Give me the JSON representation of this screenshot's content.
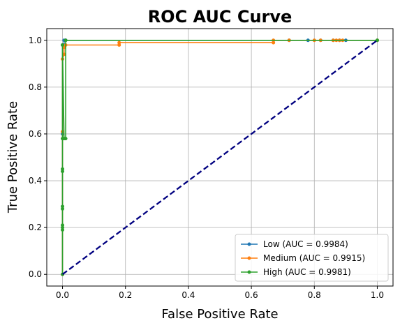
{
  "chart_data": {
    "type": "line",
    "title": "ROC AUC Curve",
    "xlabel": "False Positive Rate",
    "ylabel": "True Positive Rate",
    "xlim": [
      -0.05,
      1.05
    ],
    "ylim": [
      -0.05,
      1.05
    ],
    "xticks": [
      "0.0",
      "0.2",
      "0.4",
      "0.6",
      "0.8",
      "1.0"
    ],
    "yticks": [
      "0.0",
      "0.2",
      "0.4",
      "0.6",
      "0.8",
      "1.0"
    ],
    "grid": true,
    "legend_position": "lower right",
    "series": [
      {
        "name": "Low (AUC = 0.9984)",
        "color": "#1f77b4",
        "x": [
          0,
          0,
          0,
          0.005,
          0.005,
          0.01,
          0.01,
          0.72,
          0.78,
          0.82,
          0.86,
          0.88,
          0.9,
          1.0
        ],
        "y": [
          0,
          0.6,
          0.98,
          0.98,
          1.0,
          1.0,
          1.0,
          1.0,
          1.0,
          1.0,
          1.0,
          1.0,
          1.0,
          1.0
        ]
      },
      {
        "name": "Medium (AUC = 0.9915)",
        "color": "#ff7f0e",
        "x": [
          0,
          0,
          0,
          0.005,
          0.005,
          0.01,
          0.18,
          0.18,
          0.67,
          0.67,
          0.72,
          0.8,
          0.82,
          0.86,
          0.87,
          0.88,
          0.89,
          1.0
        ],
        "y": [
          0,
          0.61,
          0.92,
          0.94,
          0.97,
          0.98,
          0.98,
          0.99,
          0.99,
          1.0,
          1.0,
          1.0,
          1.0,
          1.0,
          1.0,
          1.0,
          1.0,
          1.0
        ]
      },
      {
        "name": "High (AUC = 0.9981)",
        "color": "#2ca02c",
        "x": [
          0,
          0,
          0,
          0,
          0,
          0,
          0,
          0,
          0,
          0,
          0.005,
          0.01,
          0.01,
          1.0
        ],
        "y": [
          0,
          0.19,
          0.2,
          0.21,
          0.28,
          0.29,
          0.44,
          0.45,
          0.58,
          0.98,
          0.58,
          0.58,
          1.0,
          1.0
        ]
      }
    ],
    "reference_line": {
      "x": [
        0,
        1
      ],
      "y": [
        0,
        1
      ],
      "color": "#000080",
      "style": "dashed"
    }
  }
}
